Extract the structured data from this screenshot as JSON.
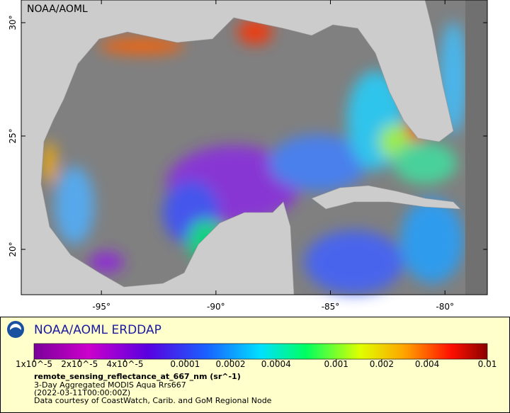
{
  "map": {
    "corner_label": "NOAA/AOML",
    "xlim": [
      -98.5,
      -78.15
    ],
    "ylim": [
      18,
      31
    ],
    "xticks": [
      {
        "value": -95,
        "label": "-95°"
      },
      {
        "value": -90,
        "label": "-90°"
      },
      {
        "value": -85,
        "label": "-85°"
      },
      {
        "value": -80,
        "label": "-80°"
      }
    ],
    "yticks": [
      {
        "value": 20,
        "label": "20°"
      },
      {
        "value": 25,
        "label": "25°"
      },
      {
        "value": 30,
        "label": "30°"
      }
    ]
  },
  "legend": {
    "title": "NOAA/AOML ERDDAP",
    "colorbar": {
      "scale": "log",
      "lim": [
        1e-05,
        0.01
      ],
      "ticks": [
        {
          "value": 1e-05,
          "label": "1x10^-5"
        },
        {
          "value": 2e-05,
          "label": "2x10^-5"
        },
        {
          "value": 4e-05,
          "label": "4x10^-5"
        },
        0.0001,
        0.0002,
        0.0004,
        0.001,
        0.002,
        0.004,
        0.01
      ]
    },
    "variable": "remote_sensing_reflectance_at_667_nm (sr^-1)",
    "lines": [
      "3-Day Aggregated MODIS Aqua Rrs667",
      "(2022-03-11T00:00:00Z)",
      "Data courtesy of CoastWatch, Carib. and GoM Regional Node"
    ]
  }
}
